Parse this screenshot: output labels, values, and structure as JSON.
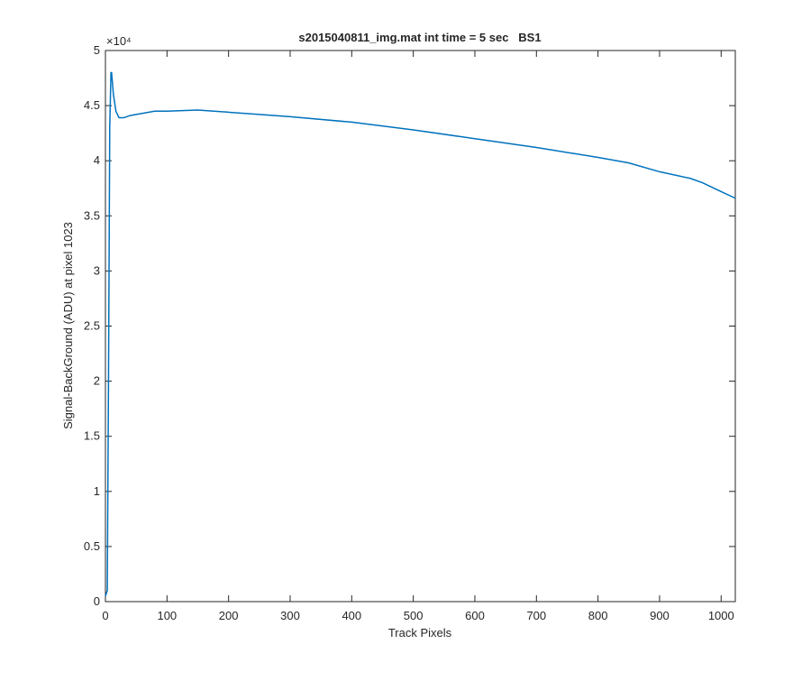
{
  "chart_data": {
    "type": "line",
    "title": "s2015040811_img.mat int time = 5 sec   BS1",
    "x_label": "Track Pixels",
    "y_label": "Signal-BackGround (ADU) at pixel 1023",
    "y_multiplier": "×10⁴",
    "x": [
      0,
      3,
      5,
      7,
      9,
      10,
      13,
      17,
      22,
      30,
      40,
      50,
      80,
      100,
      150,
      200,
      250,
      300,
      400,
      500,
      600,
      700,
      800,
      850,
      900,
      950,
      970,
      1000,
      1023
    ],
    "series": [
      {
        "name": "BS1",
        "color": "#0072bd",
        "values": [
          0.05,
          0.1,
          2.0,
          4.3,
          4.8,
          4.8,
          4.6,
          4.45,
          4.39,
          4.39,
          4.41,
          4.42,
          4.45,
          4.45,
          4.46,
          4.44,
          4.42,
          4.4,
          4.35,
          4.28,
          4.2,
          4.12,
          4.03,
          3.98,
          3.9,
          3.84,
          3.8,
          3.72,
          3.66
        ]
      }
    ],
    "xlim": [
      0,
      1023
    ],
    "xticks": [
      0,
      100,
      200,
      300,
      400,
      500,
      600,
      700,
      800,
      900,
      1000
    ],
    "ylim": [
      0,
      5
    ],
    "yticks": [
      0,
      0.5,
      1,
      1.5,
      2,
      2.5,
      3,
      3.5,
      4,
      4.5,
      5
    ],
    "grid": false
  }
}
